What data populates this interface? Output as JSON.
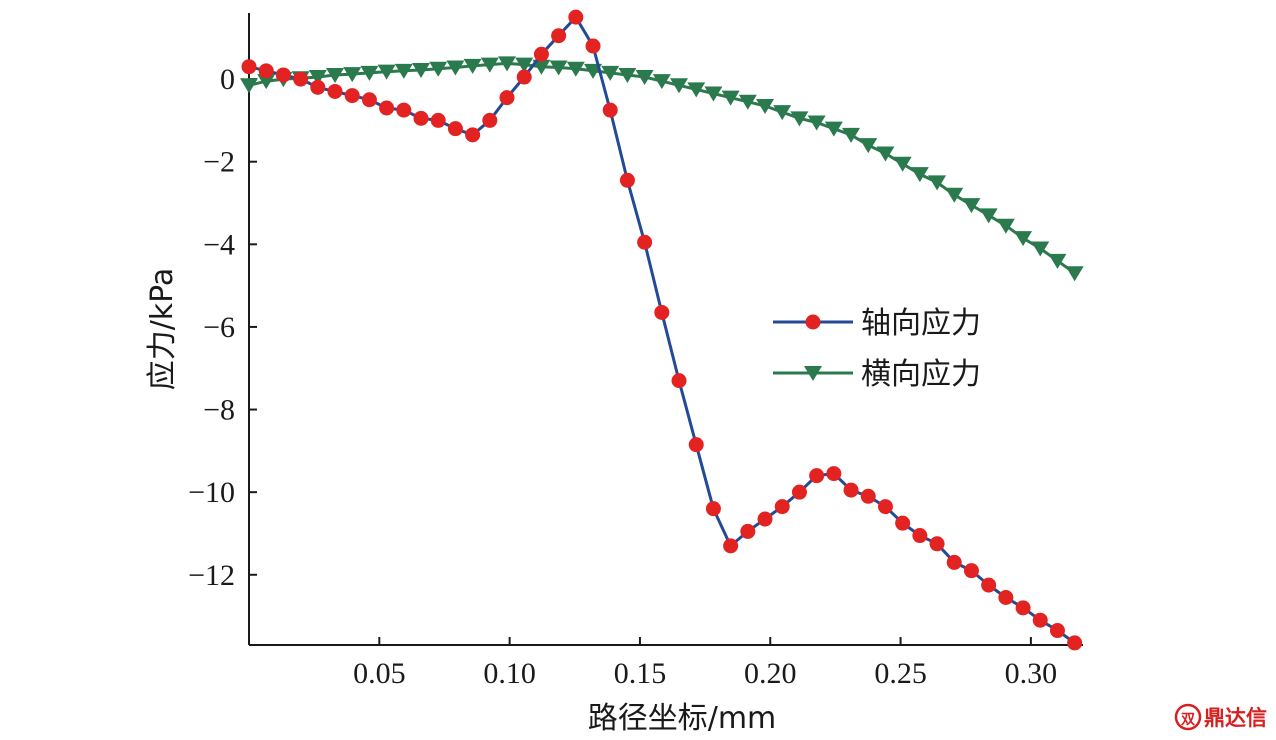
{
  "chart_data": {
    "type": "line",
    "xlabel": "路径坐标/mm",
    "ylabel": "应力/kPa",
    "xlim": [
      0,
      0.32
    ],
    "ylim": [
      -13.7,
      1.6
    ],
    "xticks": [
      0.05,
      0.1,
      0.15,
      0.2,
      0.25,
      0.3
    ],
    "xtick_labels": [
      "0.05",
      "0.10",
      "0.15",
      "0.20",
      "0.25",
      "0.30"
    ],
    "yticks": [
      0,
      -2,
      -4,
      -6,
      -8,
      -10,
      -12
    ],
    "ytick_labels": [
      "0",
      "−2",
      "−4",
      "−6",
      "−8",
      "−10",
      "−12"
    ],
    "legend_position": "center-right",
    "grid": false,
    "series": [
      {
        "name": "轴向应力",
        "color": "#234a96",
        "marker": "circle",
        "marker_color": "#e32222",
        "x": [
          0.0,
          0.0066,
          0.0132,
          0.0198,
          0.0264,
          0.033,
          0.0396,
          0.0462,
          0.0528,
          0.0594,
          0.066,
          0.0726,
          0.0792,
          0.0858,
          0.0924,
          0.099,
          0.1056,
          0.1122,
          0.1188,
          0.1254,
          0.132,
          0.1386,
          0.1452,
          0.1518,
          0.1584,
          0.165,
          0.1716,
          0.1782,
          0.1848,
          0.1914,
          0.198,
          0.2046,
          0.2112,
          0.2178,
          0.2244,
          0.231,
          0.2376,
          0.2442,
          0.2508,
          0.2574,
          0.264,
          0.2706,
          0.2772,
          0.2838,
          0.2904,
          0.297,
          0.3036,
          0.3102,
          0.3168
        ],
        "y": [
          0.3,
          0.2,
          0.1,
          0.0,
          -0.2,
          -0.3,
          -0.4,
          -0.5,
          -0.7,
          -0.75,
          -0.95,
          -1.0,
          -1.2,
          -1.35,
          -1.0,
          -0.45,
          0.05,
          0.6,
          1.05,
          1.5,
          0.8,
          -0.75,
          -2.45,
          -3.95,
          -5.65,
          -7.3,
          -8.85,
          -10.4,
          -11.3,
          -10.95,
          -10.65,
          -10.35,
          -10.0,
          -9.6,
          -9.55,
          -9.95,
          -10.1,
          -10.35,
          -10.75,
          -11.05,
          -11.25,
          -11.7,
          -11.9,
          -12.25,
          -12.55,
          -12.8,
          -13.1,
          -13.35,
          -13.65
        ]
      },
      {
        "name": "横向应力",
        "color": "#2a7a4e",
        "marker": "triangle-down",
        "marker_color": "#2a7a4e",
        "x": [
          0.0,
          0.0066,
          0.0132,
          0.0198,
          0.0264,
          0.033,
          0.0396,
          0.0462,
          0.0528,
          0.0594,
          0.066,
          0.0726,
          0.0792,
          0.0858,
          0.0924,
          0.099,
          0.1056,
          0.1122,
          0.1188,
          0.1254,
          0.132,
          0.1386,
          0.1452,
          0.1518,
          0.1584,
          0.165,
          0.1716,
          0.1782,
          0.1848,
          0.1914,
          0.198,
          0.2046,
          0.2112,
          0.2178,
          0.2244,
          0.231,
          0.2376,
          0.2442,
          0.2508,
          0.2574,
          0.264,
          0.2706,
          0.2772,
          0.2838,
          0.2904,
          0.297,
          0.3036,
          0.3102,
          0.3168
        ],
        "y": [
          -0.15,
          -0.05,
          0.0,
          0.02,
          0.05,
          0.1,
          0.12,
          0.15,
          0.18,
          0.2,
          0.22,
          0.25,
          0.28,
          0.32,
          0.35,
          0.38,
          0.35,
          0.3,
          0.28,
          0.25,
          0.2,
          0.15,
          0.1,
          0.05,
          -0.05,
          -0.15,
          -0.25,
          -0.35,
          -0.45,
          -0.55,
          -0.65,
          -0.8,
          -0.95,
          -1.05,
          -1.2,
          -1.35,
          -1.6,
          -1.8,
          -2.05,
          -2.3,
          -2.5,
          -2.8,
          -3.05,
          -3.3,
          -3.55,
          -3.85,
          -4.1,
          -4.4,
          -4.7
        ]
      }
    ]
  },
  "watermark": {
    "text": "鼎达信",
    "logo_mark": "双",
    "color": "#d81e1e"
  }
}
